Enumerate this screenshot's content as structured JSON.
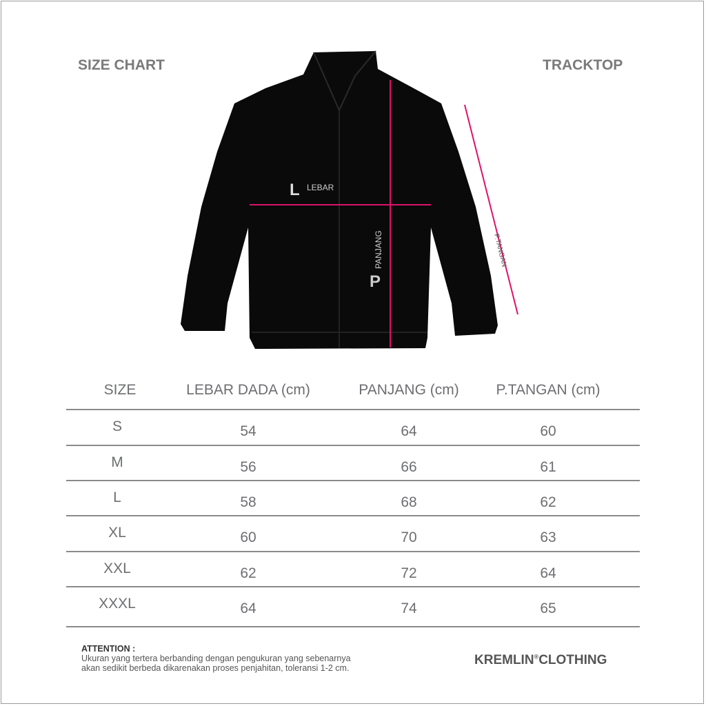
{
  "header": {
    "left_title": "SIZE CHART",
    "right_title": "TRACKTOP"
  },
  "diagram": {
    "lebar_letter": "L",
    "lebar_label": "LEBAR",
    "panjang_letter": "P",
    "panjang_label": "PANJANG",
    "tangan_label": "P.TANGAN",
    "garment_color": "#000000",
    "measure_line_color": "#e0106a"
  },
  "table": {
    "headers": [
      "SIZE",
      "LEBAR DADA (cm)",
      "PANJANG (cm)",
      "P.TANGAN (cm)"
    ],
    "rows": [
      [
        "S",
        "54",
        "64",
        "60"
      ],
      [
        "M",
        "56",
        "66",
        "61"
      ],
      [
        "L",
        "58",
        "68",
        "62"
      ],
      [
        "XL",
        "60",
        "70",
        "63"
      ],
      [
        "XXL",
        "62",
        "72",
        "64"
      ],
      [
        "XXXL",
        "64",
        "74",
        "65"
      ]
    ]
  },
  "footer": {
    "attention_title": "ATTENTION :",
    "attention_line1": "Ukuran yang tertera berbanding dengan pengukuran yang sebenarnya",
    "attention_line2": "akan sedikit berbeda dikarenakan proses penjahitan, toleransi 1-2 cm.",
    "brand_part1": "KREMLIN",
    "brand_mark": "®",
    "brand_part2": "CLOTHING"
  }
}
